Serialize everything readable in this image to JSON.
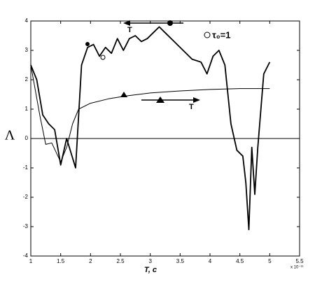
{
  "chart_data": {
    "type": "line",
    "x_label": "T, c",
    "y_label": "Λ",
    "x_multiplier": "x 10⁻¹¹",
    "annotations": [
      "T",
      "T",
      "τ₀=1"
    ],
    "series": [
      {
        "color": "#000000",
        "width": 1.8,
        "x": [
          1,
          1.1,
          1.2,
          1.3,
          1.4,
          1.5,
          1.6,
          1.75,
          1.85,
          1.95,
          2.05,
          2.15,
          2.25,
          2.35,
          2.45,
          2.55,
          2.65,
          2.75,
          2.85,
          2.95,
          3.05,
          3.15,
          3.25,
          3.4,
          3.55,
          3.7,
          3.85,
          3.95,
          4.05,
          4.15,
          4.25,
          4.35,
          4.45,
          4.55,
          4.6,
          4.65,
          4.7,
          4.75,
          4.8,
          4.9,
          5.0
        ],
        "values": [
          2.5,
          2.0,
          0.8,
          0.5,
          0.3,
          -0.9,
          0.0,
          -1.0,
          2.5,
          3.1,
          3.2,
          2.8,
          3.1,
          2.9,
          3.4,
          3.0,
          3.4,
          3.5,
          3.3,
          3.4,
          3.6,
          3.8,
          3.6,
          3.3,
          3.0,
          2.7,
          2.6,
          2.2,
          2.8,
          3.0,
          2.5,
          0.5,
          -0.4,
          -0.6,
          -1.5,
          -3.1,
          -0.3,
          -1.9,
          -0.3,
          2.2,
          2.6
        ]
      },
      {
        "color": "#000000",
        "width": 1,
        "x": [
          1,
          1.15,
          1.25,
          1.35,
          1.5,
          1.6,
          1.7,
          1.8,
          2.0,
          2.3,
          2.6,
          3.0,
          3.5,
          4.0,
          4.5,
          5.0
        ],
        "values": [
          2.5,
          0.8,
          -0.2,
          -0.15,
          -0.8,
          -0.3,
          0.5,
          1.0,
          1.2,
          1.35,
          1.45,
          1.55,
          1.62,
          1.67,
          1.7,
          1.7
        ]
      }
    ],
    "xlim": [
      1,
      5.5
    ],
    "xticks": [
      1,
      1.5,
      2,
      2.5,
      3,
      3.5,
      4,
      4.5,
      5,
      5.5
    ],
    "ylim": [
      -4,
      4
    ],
    "yticks": [
      -4,
      -3,
      -2,
      -1,
      0,
      1,
      2,
      3,
      4
    ],
    "hline": 0
  }
}
